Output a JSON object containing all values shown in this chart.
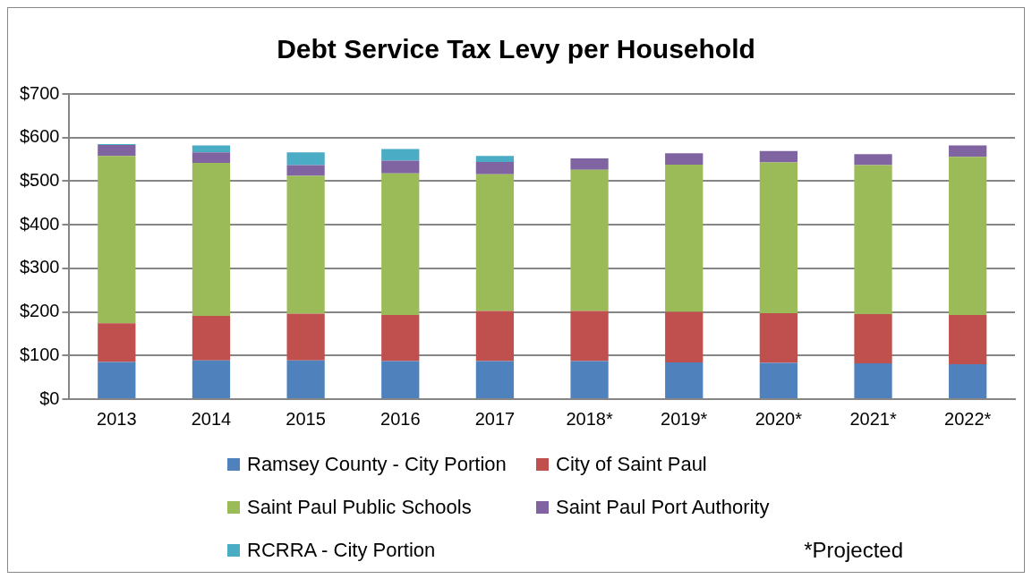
{
  "chart_data": {
    "type": "bar",
    "title": "Debt Service Tax Levy per Household",
    "stacked": true,
    "categories": [
      "2013",
      "2014",
      "2015",
      "2016",
      "2017",
      "2018*",
      "2019*",
      "2020*",
      "2021*",
      "2022*"
    ],
    "series": [
      {
        "name": "Ramsey County - City Portion",
        "color": "#4f81bd",
        "values": [
          85,
          89,
          89,
          87,
          87,
          87,
          84,
          83,
          82,
          80
        ]
      },
      {
        "name": "City of Saint Paul",
        "color": "#c0504d",
        "values": [
          89,
          102,
          107,
          106,
          115,
          115,
          116,
          114,
          113,
          113
        ]
      },
      {
        "name": "Saint Paul Public Schools",
        "color": "#9bbb59",
        "values": [
          384,
          351,
          316,
          325,
          314,
          324,
          338,
          346,
          342,
          363
        ]
      },
      {
        "name": "Saint Paul Port Authority",
        "color": "#8064a2",
        "values": [
          25,
          24,
          25,
          29,
          28,
          26,
          26,
          26,
          25,
          26
        ]
      },
      {
        "name": "RCRRA - City Portion",
        "color": "#4bacc6",
        "values": [
          2,
          16,
          29,
          27,
          14,
          null,
          null,
          null,
          null,
          null
        ]
      }
    ],
    "ylim": [
      0,
      700
    ],
    "yticks": [
      {
        "value": 0,
        "label": "$0"
      },
      {
        "value": 100,
        "label": "$100"
      },
      {
        "value": 200,
        "label": "$200"
      },
      {
        "value": 300,
        "label": "$300"
      },
      {
        "value": 400,
        "label": "$400"
      },
      {
        "value": 500,
        "label": "$500"
      },
      {
        "value": 600,
        "label": "$600"
      },
      {
        "value": 700,
        "label": "$700"
      }
    ],
    "grid": "y",
    "legend": "bottom",
    "annotations": [
      "*Projected"
    ]
  }
}
